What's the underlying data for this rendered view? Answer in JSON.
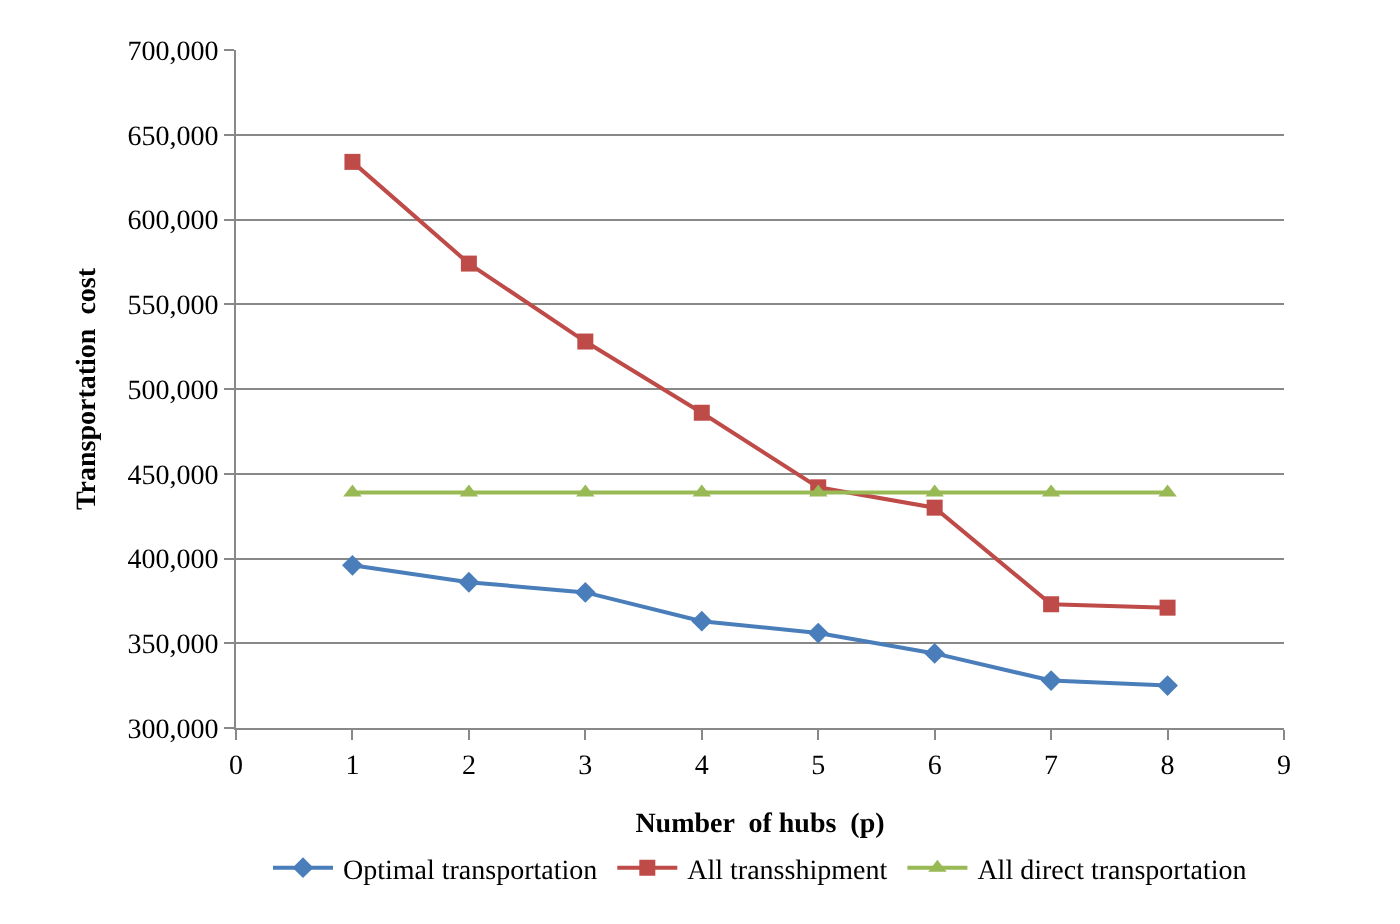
{
  "chart_data": {
    "type": "line",
    "xlabel": "Number  of hubs  (p)",
    "ylabel": "Transportation  cost",
    "x": [
      1,
      2,
      3,
      4,
      5,
      6,
      7,
      8
    ],
    "series": [
      {
        "name": "Optimal transportation",
        "color": "#4a7ebb",
        "marker": "diamond",
        "values": [
          396000,
          386000,
          380000,
          363000,
          356000,
          344000,
          328000,
          325000
        ]
      },
      {
        "name": "All transshipment",
        "color": "#be4b48",
        "marker": "square",
        "values": [
          634000,
          574000,
          528000,
          486000,
          442000,
          430000,
          373000,
          371000
        ]
      },
      {
        "name": "All direct transportation",
        "color": "#98b954",
        "marker": "triangle",
        "values": [
          439000,
          439000,
          439000,
          439000,
          439000,
          439000,
          439000,
          439000
        ]
      }
    ],
    "xlim": [
      0,
      9
    ],
    "xticks": [
      0,
      1,
      2,
      3,
      4,
      5,
      6,
      7,
      8,
      9
    ],
    "ylim": [
      300000,
      700000
    ],
    "yticks": [
      {
        "value": 300000,
        "label": "300,000"
      },
      {
        "value": 350000,
        "label": "350,000"
      },
      {
        "value": 400000,
        "label": "400,000"
      },
      {
        "value": 450000,
        "label": "450,000"
      },
      {
        "value": 500000,
        "label": "500,000"
      },
      {
        "value": 550000,
        "label": "550,000"
      },
      {
        "value": 600000,
        "label": "600,000"
      },
      {
        "value": 650000,
        "label": "650,000"
      },
      {
        "value": 700000,
        "label": "700,000"
      }
    ],
    "grid": "y",
    "legend": "bottom",
    "line_style": "solid"
  }
}
